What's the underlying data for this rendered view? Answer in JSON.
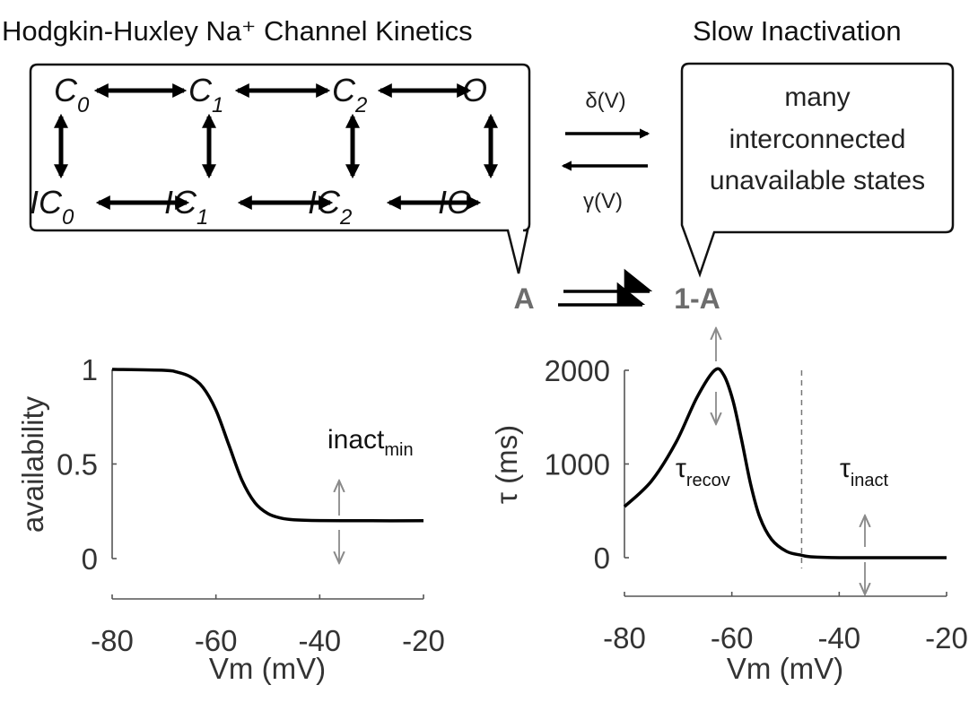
{
  "titles": {
    "left": "Hodgkin-Huxley Na⁺ Channel Kinetics",
    "right": "Slow Inactivation"
  },
  "states": {
    "top": [
      {
        "base": "C",
        "sub": "0"
      },
      {
        "base": "C",
        "sub": "1"
      },
      {
        "base": "C",
        "sub": "2"
      },
      {
        "base": "O",
        "sub": ""
      }
    ],
    "bottom": [
      {
        "base": "IC",
        "sub": "0"
      },
      {
        "base": "IC",
        "sub": "1"
      },
      {
        "base": "IC",
        "sub": "2"
      },
      {
        "base": "IO",
        "sub": ""
      }
    ]
  },
  "rates": {
    "forward": "δ(V)",
    "backward": "γ(V)"
  },
  "slow_bubble": [
    "many",
    "interconnected",
    "unavailable states"
  ],
  "pool_labels": {
    "available": "A",
    "unavailable": "1-A"
  },
  "colors": {
    "curve": "#000000",
    "axis": "#555555",
    "annotation_arrow": "#8a8a8a",
    "pool_label": "#6d6d6d"
  },
  "chart_data": [
    {
      "type": "line",
      "xlabel": "Vm (mV)",
      "ylabel": "availability",
      "xlim": [
        -80,
        -20
      ],
      "ylim": [
        0,
        1
      ],
      "xticks": [
        "-80",
        "-60",
        "-40",
        "-20"
      ],
      "yticks": [
        "0",
        "0.5",
        "1"
      ],
      "annotation": {
        "base": "inact",
        "sub": "min"
      },
      "x": [
        -80,
        -70,
        -67.5,
        -65,
        -62.5,
        -60,
        -57.5,
        -55,
        -52.5,
        -50,
        -47.5,
        -45,
        -40,
        -30,
        -20
      ],
      "y": [
        1.0,
        0.995,
        0.986,
        0.962,
        0.905,
        0.785,
        0.6,
        0.415,
        0.296,
        0.238,
        0.214,
        0.205,
        0.201,
        0.2,
        0.2
      ]
    },
    {
      "type": "line",
      "xlabel": "Vm (mV)",
      "ylabel": "τ (ms)",
      "xlim": [
        -80,
        -20
      ],
      "ylim": [
        0,
        2000
      ],
      "xticks": [
        "-80",
        "-60",
        "-40",
        "-20"
      ],
      "yticks": [
        "0",
        "1000",
        "2000"
      ],
      "dashed_vline_x": -47,
      "annotations": [
        {
          "base": "τ",
          "sub": "recov"
        },
        {
          "base": "τ",
          "sub": "inact"
        }
      ],
      "x": [
        -80,
        -75,
        -70.4,
        -66.5,
        -63.2,
        -61.5,
        -59.8,
        -58.2,
        -56.5,
        -54.8,
        -52.6,
        -49.8,
        -47,
        -45.3,
        -40,
        -30,
        -20
      ],
      "y": [
        545,
        816,
        1231,
        1710,
        2000,
        1949,
        1678,
        1263,
        785,
        434,
        195,
        67,
        26,
        10,
        0,
        0,
        0
      ]
    }
  ]
}
